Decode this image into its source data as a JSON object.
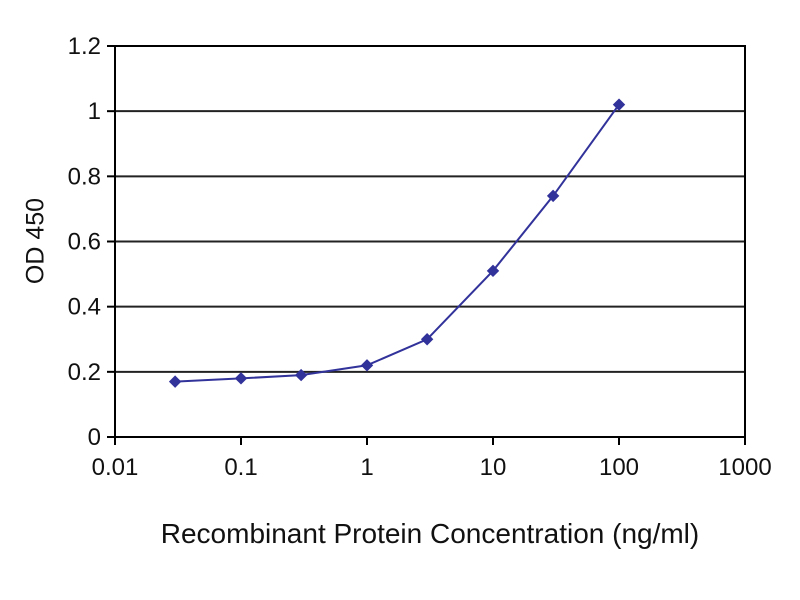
{
  "chart_data": {
    "type": "line",
    "title": "",
    "xlabel": "Recombinant Protein Concentration (ng/ml)",
    "ylabel": "OD 450",
    "x_scale": "log",
    "xlim": [
      0.01,
      1000
    ],
    "ylim": [
      0,
      1.2
    ],
    "x_ticks": [
      0.01,
      0.1,
      1,
      10,
      100,
      1000
    ],
    "x_tick_labels": [
      "0.01",
      "0.1",
      "1",
      "10",
      "100",
      "1000"
    ],
    "y_ticks": [
      0,
      0.2,
      0.4,
      0.6,
      0.8,
      1,
      1.2
    ],
    "y_tick_labels": [
      "0",
      "0.2",
      "0.4",
      "0.6",
      "0.8",
      "1",
      "1.2"
    ],
    "grid": "horizontal",
    "legend": "none",
    "series": [
      {
        "name": "OD 450",
        "color": "#32329b",
        "marker": "diamond",
        "x": [
          0.03,
          0.1,
          0.3,
          1,
          3,
          10,
          30,
          100
        ],
        "y": [
          0.17,
          0.18,
          0.19,
          0.22,
          0.3,
          0.51,
          0.74,
          1.02
        ]
      }
    ]
  },
  "colors": {
    "line": "#32329b",
    "grid": "#222222",
    "axis": "#000000",
    "background": "#ffffff",
    "text": "#111111"
  }
}
